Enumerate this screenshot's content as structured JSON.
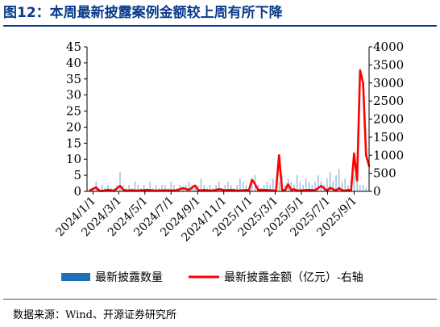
{
  "header": {
    "title": "图12：本周最新披露案例金额较上周有所下降"
  },
  "footer": {
    "source": "数据来源：Wind、开源证券研究所"
  },
  "chart_data": {
    "type": "bar+line",
    "title": "",
    "xlabel": "",
    "ylabel_left": "",
    "ylabel_right": "",
    "y_left": {
      "ylim": [
        0,
        45
      ],
      "ticks": [
        0,
        5,
        10,
        15,
        20,
        25,
        30,
        35,
        40,
        45
      ]
    },
    "y_right": {
      "ylim": [
        0,
        4000
      ],
      "ticks": [
        0,
        500,
        1000,
        1500,
        2000,
        2500,
        3000,
        3500,
        4000
      ]
    },
    "x_range": [
      "2023-12-18",
      "2025-10-06"
    ],
    "x_tick_labels": [
      "2024/1/1",
      "2024/3/1",
      "2024/5/1",
      "2024/7/1",
      "2024/9/1",
      "2024/11/1",
      "2025/1/1",
      "2025/3/1",
      "2025/5/1",
      "2025/7/1",
      "2025/9/1"
    ],
    "x_tick_dates": [
      "2024-01-01",
      "2024-03-01",
      "2024-05-01",
      "2024-07-01",
      "2024-09-01",
      "2024-11-01",
      "2025-01-01",
      "2025-03-01",
      "2025-05-01",
      "2025-07-01",
      "2025-09-01"
    ],
    "legend": {
      "placement": "bottom",
      "items": [
        "最新披露数量",
        "最新披露金额（亿元）-右轴"
      ]
    },
    "grid": false,
    "colors": {
      "bars": "#1f6fb5",
      "line": "#ff0000"
    },
    "series": [
      {
        "name": "最新披露数量",
        "type": "bar",
        "axis": "left",
        "x": [
          "2024-01-01",
          "2024-01-08",
          "2024-01-15",
          "2024-01-22",
          "2024-01-29",
          "2024-02-05",
          "2024-02-12",
          "2024-02-19",
          "2024-02-26",
          "2024-03-04",
          "2024-03-11",
          "2024-03-18",
          "2024-03-25",
          "2024-04-01",
          "2024-04-08",
          "2024-04-15",
          "2024-04-22",
          "2024-04-29",
          "2024-05-06",
          "2024-05-13",
          "2024-05-20",
          "2024-05-27",
          "2024-06-03",
          "2024-06-10",
          "2024-06-17",
          "2024-06-24",
          "2024-07-01",
          "2024-07-08",
          "2024-07-15",
          "2024-07-22",
          "2024-07-29",
          "2024-08-05",
          "2024-08-12",
          "2024-08-19",
          "2024-08-26",
          "2024-09-02",
          "2024-09-09",
          "2024-09-16",
          "2024-09-23",
          "2024-09-30",
          "2024-10-07",
          "2024-10-14",
          "2024-10-21",
          "2024-10-28",
          "2024-11-04",
          "2024-11-11",
          "2024-11-18",
          "2024-11-25",
          "2024-12-02",
          "2024-12-09",
          "2024-12-16",
          "2024-12-23",
          "2024-12-30",
          "2025-01-06",
          "2025-01-13",
          "2025-01-20",
          "2025-01-27",
          "2025-02-03",
          "2025-02-10",
          "2025-02-17",
          "2025-02-24",
          "2025-03-03",
          "2025-03-10",
          "2025-03-17",
          "2025-03-24",
          "2025-03-31",
          "2025-04-07",
          "2025-04-14",
          "2025-04-21",
          "2025-04-28",
          "2025-05-05",
          "2025-05-12",
          "2025-05-19",
          "2025-05-26",
          "2025-06-02",
          "2025-06-09",
          "2025-06-16",
          "2025-06-23",
          "2025-06-30",
          "2025-07-07",
          "2025-07-14",
          "2025-07-21",
          "2025-07-28",
          "2025-08-04",
          "2025-08-11",
          "2025-08-18",
          "2025-08-25",
          "2025-09-01",
          "2025-09-08",
          "2025-09-15",
          "2025-09-22",
          "2025-09-29"
        ],
        "values": [
          1,
          3,
          1,
          2,
          1,
          2,
          1,
          1,
          2,
          6,
          2,
          1,
          2,
          1,
          3,
          2,
          1,
          2,
          1,
          3,
          1,
          2,
          1,
          2,
          2,
          1,
          3,
          2,
          1,
          2,
          1,
          2,
          3,
          2,
          1,
          2,
          4,
          2,
          1,
          2,
          1,
          2,
          3,
          1,
          2,
          3,
          2,
          1,
          2,
          4,
          3,
          2,
          1,
          3,
          5,
          2,
          1,
          2,
          3,
          2,
          4,
          2,
          3,
          5,
          2,
          4,
          3,
          2,
          5,
          3,
          2,
          4,
          3,
          2,
          3,
          5,
          3,
          2,
          4,
          6,
          3,
          5,
          7,
          3,
          4,
          2,
          3,
          5,
          3,
          2,
          2,
          1
        ]
      },
      {
        "name": "最新披露金额（亿元）-右轴",
        "type": "line",
        "axis": "right",
        "x": [
          "2023-12-25",
          "2024-01-08",
          "2024-01-15",
          "2024-01-22",
          "2024-02-05",
          "2024-02-19",
          "2024-03-04",
          "2024-03-11",
          "2024-03-18",
          "2024-04-01",
          "2024-04-15",
          "2024-05-06",
          "2024-05-20",
          "2024-06-03",
          "2024-06-17",
          "2024-07-01",
          "2024-07-15",
          "2024-07-29",
          "2024-08-12",
          "2024-08-26",
          "2024-09-02",
          "2024-09-09",
          "2024-09-16",
          "2024-09-23",
          "2024-10-07",
          "2024-10-21",
          "2024-11-04",
          "2024-11-18",
          "2024-12-02",
          "2024-12-16",
          "2024-12-30",
          "2025-01-06",
          "2025-01-13",
          "2025-01-20",
          "2025-02-03",
          "2025-02-17",
          "2025-03-03",
          "2025-03-10",
          "2025-03-17",
          "2025-03-24",
          "2025-03-31",
          "2025-04-07",
          "2025-04-14",
          "2025-04-21",
          "2025-05-05",
          "2025-05-19",
          "2025-06-02",
          "2025-06-16",
          "2025-06-30",
          "2025-07-07",
          "2025-07-14",
          "2025-07-21",
          "2025-07-28",
          "2025-08-04",
          "2025-08-11",
          "2025-08-18",
          "2025-08-25",
          "2025-09-01",
          "2025-09-08",
          "2025-09-15",
          "2025-09-22",
          "2025-09-29",
          "2025-10-06"
        ],
        "values": [
          30,
          110,
          20,
          10,
          40,
          15,
          150,
          50,
          20,
          30,
          20,
          40,
          25,
          20,
          30,
          25,
          30,
          90,
          40,
          160,
          40,
          25,
          40,
          30,
          20,
          60,
          30,
          40,
          20,
          30,
          40,
          320,
          200,
          40,
          40,
          30,
          20,
          1000,
          40,
          30,
          200,
          40,
          60,
          20,
          30,
          40,
          30,
          150,
          20,
          100,
          60,
          20,
          90,
          30,
          20,
          40,
          30,
          1050,
          300,
          3350,
          3000,
          1000,
          700
        ]
      }
    ]
  }
}
